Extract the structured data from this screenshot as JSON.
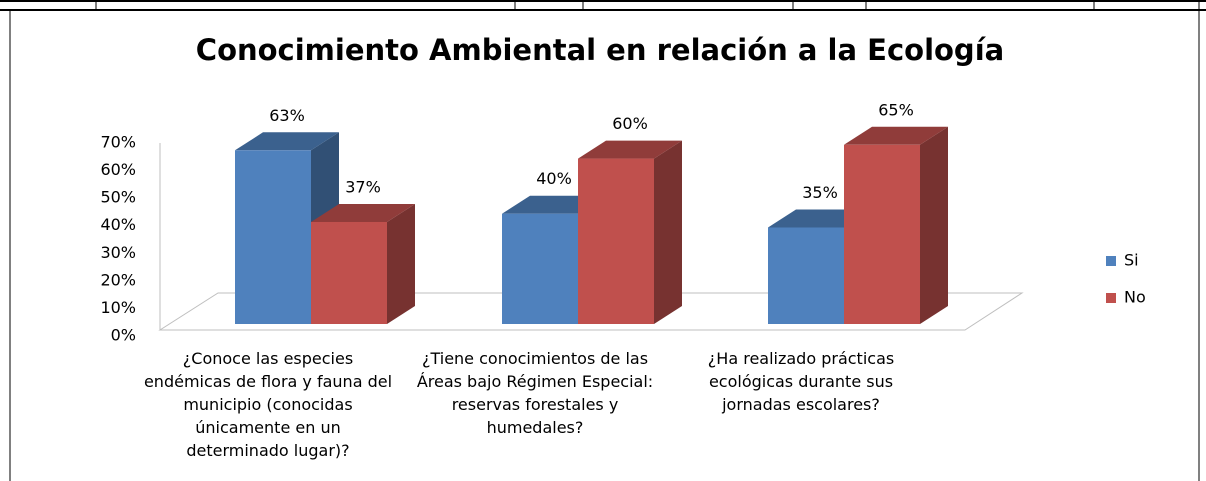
{
  "chart_data": {
    "type": "bar3d",
    "title": "Conocimiento Ambiental  en relación a la Ecología",
    "categories": [
      "¿Conoce las especies endémicas de flora y fauna del municipio (conocidas únicamente en un determinado lugar)?",
      "¿Tiene  conocimientos de las Áreas bajo Régimen Especial: reservas forestales y humedales?",
      "¿Ha realizado  prácticas ecológicas durante sus jornadas escolares?"
    ],
    "series": [
      {
        "name": "Si",
        "color": "#4f81bd",
        "values": [
          63,
          40,
          35
        ],
        "value_labels": [
          "63%",
          "40%",
          "35%"
        ]
      },
      {
        "name": "No",
        "color": "#c0504d",
        "values": [
          37,
          60,
          65
        ],
        "value_labels": [
          "37%",
          "60%",
          "65%"
        ]
      }
    ],
    "ylim": [
      0,
      70
    ],
    "yticks": [
      {
        "value": 0,
        "label": "0%"
      },
      {
        "value": 10,
        "label": "10%"
      },
      {
        "value": 20,
        "label": "20%"
      },
      {
        "value": 30,
        "label": "30%"
      },
      {
        "value": 40,
        "label": "40%"
      },
      {
        "value": 50,
        "label": "50%"
      },
      {
        "value": 60,
        "label": "60%"
      },
      {
        "value": 70,
        "label": "70%"
      }
    ],
    "legend": "right"
  }
}
